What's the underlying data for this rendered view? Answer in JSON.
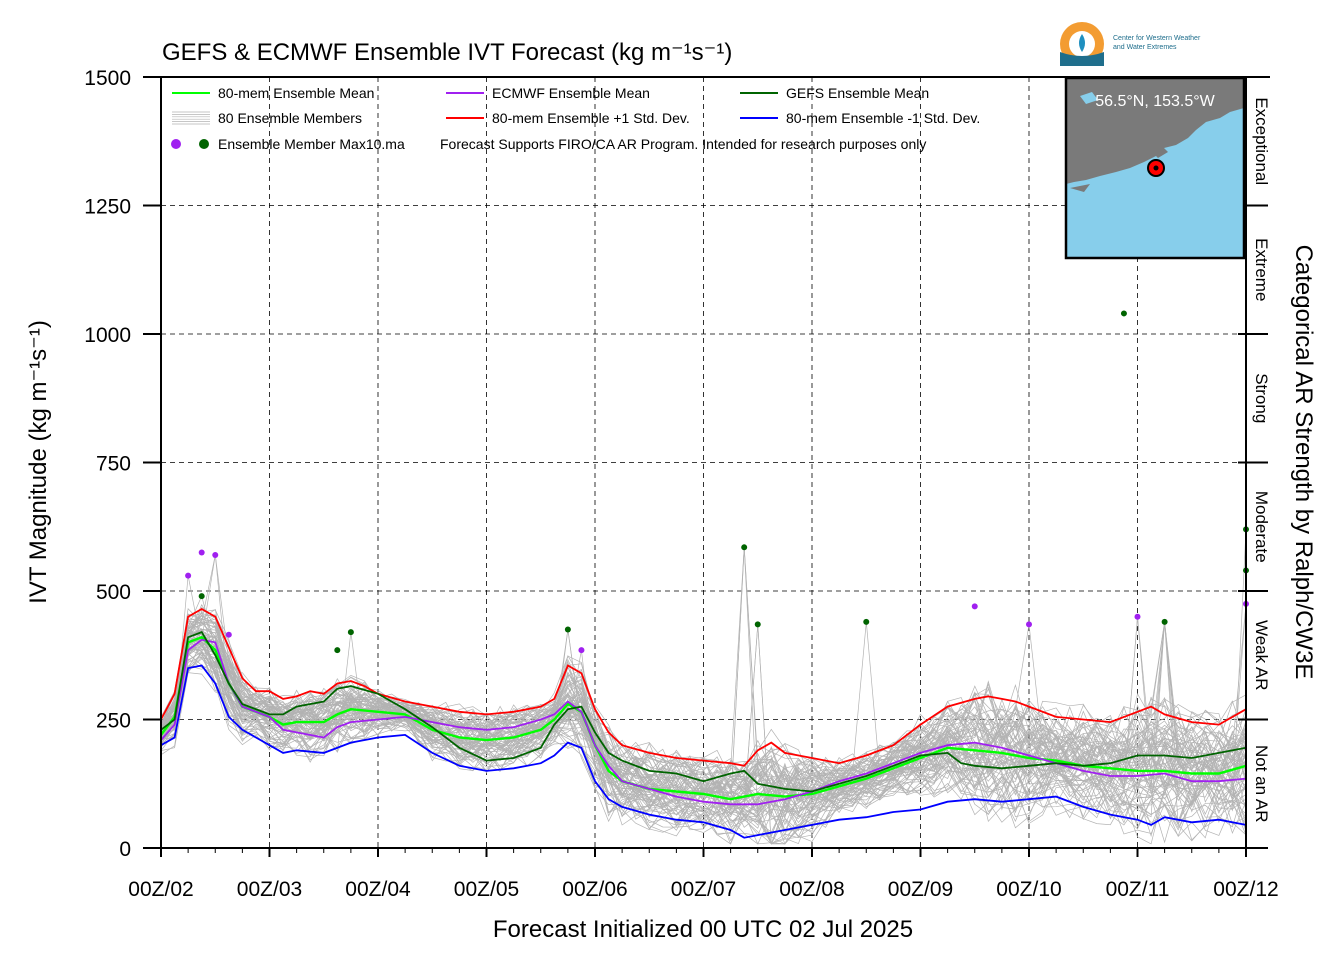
{
  "title": "GEFS & ECMWF Ensemble IVT Forecast (kg m⁻¹s⁻¹)",
  "xlabel": "Forecast Initialized 00 UTC 02 Jul 2025",
  "ylabel": "IVT Magnitude (kg m⁻¹s⁻¹)",
  "right_axis_label": "Categorical AR Strength by Ralph/CW3E",
  "logo_text": [
    "Center for Western Weather",
    "and Water Extremes"
  ],
  "inset": {
    "location_label": "56.5°N, 153.5°W",
    "colors": {
      "land": "#7a7a7a",
      "ocean": "#87ceeb",
      "marker": "#ff0000"
    }
  },
  "legend": {
    "placement": "top-left",
    "entries": [
      {
        "label": "80-mem Ensemble Mean",
        "color": "#00ff00",
        "style": "line"
      },
      {
        "label": "ECMWF Ensemble Mean",
        "color": "#a020f0",
        "style": "line"
      },
      {
        "label": "GEFS Ensemble Mean",
        "color": "#006400",
        "style": "line"
      },
      {
        "label": "80 Ensemble Members",
        "color": "#b3b3b3",
        "style": "thin-lines"
      },
      {
        "label": "80-mem Ensemble +1 Std. Dev.",
        "color": "#ff0000",
        "style": "line"
      },
      {
        "label": "80-mem Ensemble -1 Std. Dev.",
        "color": "#0000ff",
        "style": "line"
      },
      {
        "label": "Ensemble Member Max10.ma",
        "colors": [
          "#a020f0",
          "#006400"
        ],
        "style": "dots"
      }
    ],
    "note": "Forecast Supports FIRO/CA AR Program. Intended for research purposes only"
  },
  "chart_data": {
    "type": "line",
    "title": "GEFS & ECMWF Ensemble IVT Forecast (kg m⁻¹s⁻¹)",
    "xlabel": "Forecast Initialized 00 UTC 02 Jul 2025",
    "ylabel": "IVT Magnitude (kg m⁻¹s⁻¹)",
    "x_unit": "days since 00Z/02",
    "xlim": [
      0,
      10
    ],
    "ylim": [
      0,
      1500
    ],
    "x_ticks": [
      0,
      1,
      2,
      3,
      4,
      5,
      6,
      7,
      8,
      9,
      10
    ],
    "x_tick_labels": [
      "00Z/02",
      "00Z/03",
      "00Z/04",
      "00Z/05",
      "00Z/06",
      "00Z/07",
      "00Z/08",
      "00Z/09",
      "00Z/10",
      "00Z/11",
      "00Z/12"
    ],
    "y_ticks": [
      0,
      250,
      500,
      750,
      1000,
      1250,
      1500
    ],
    "y_tick_labels": [
      "0",
      "250",
      "500",
      "750",
      "1000",
      "1250",
      "1500"
    ],
    "grid": true,
    "categories_right": [
      {
        "label": "Not an AR",
        "range": [
          0,
          250
        ]
      },
      {
        "label": "Weak AR",
        "range": [
          250,
          500
        ]
      },
      {
        "label": "Moderate",
        "range": [
          500,
          750
        ]
      },
      {
        "label": "Strong",
        "range": [
          750,
          1000
        ]
      },
      {
        "label": "Extreme",
        "range": [
          1000,
          1250
        ]
      },
      {
        "label": "Exceptional",
        "range": [
          1250,
          1500
        ]
      }
    ],
    "series": [
      {
        "name": "80-mem Ensemble +1 Std. Dev.",
        "color": "#ff0000",
        "points": [
          [
            0,
            250
          ],
          [
            0.125,
            300
          ],
          [
            0.25,
            450
          ],
          [
            0.375,
            465
          ],
          [
            0.5,
            450
          ],
          [
            0.625,
            390
          ],
          [
            0.75,
            330
          ],
          [
            0.875,
            305
          ],
          [
            1,
            305
          ],
          [
            1.125,
            290
          ],
          [
            1.25,
            295
          ],
          [
            1.375,
            305
          ],
          [
            1.5,
            300
          ],
          [
            1.625,
            320
          ],
          [
            1.75,
            325
          ],
          [
            1.875,
            315
          ],
          [
            2,
            300
          ],
          [
            2.25,
            285
          ],
          [
            2.5,
            275
          ],
          [
            2.75,
            265
          ],
          [
            3,
            260
          ],
          [
            3.25,
            265
          ],
          [
            3.5,
            275
          ],
          [
            3.625,
            290
          ],
          [
            3.75,
            355
          ],
          [
            3.875,
            340
          ],
          [
            4,
            270
          ],
          [
            4.125,
            225
          ],
          [
            4.25,
            200
          ],
          [
            4.5,
            185
          ],
          [
            4.75,
            175
          ],
          [
            5,
            170
          ],
          [
            5.25,
            165
          ],
          [
            5.375,
            160
          ],
          [
            5.5,
            190
          ],
          [
            5.625,
            205
          ],
          [
            5.75,
            185
          ],
          [
            6,
            175
          ],
          [
            6.25,
            165
          ],
          [
            6.5,
            180
          ],
          [
            6.75,
            200
          ],
          [
            7,
            240
          ],
          [
            7.25,
            275
          ],
          [
            7.5,
            290
          ],
          [
            7.625,
            295
          ],
          [
            7.75,
            290
          ],
          [
            7.875,
            285
          ],
          [
            8,
            275
          ],
          [
            8.25,
            255
          ],
          [
            8.5,
            250
          ],
          [
            8.75,
            245
          ],
          [
            9,
            265
          ],
          [
            9.125,
            275
          ],
          [
            9.25,
            260
          ],
          [
            9.5,
            245
          ],
          [
            9.75,
            240
          ],
          [
            10,
            270
          ]
        ]
      },
      {
        "name": "80-mem Ensemble -1 Std. Dev.",
        "color": "#0000ff",
        "points": [
          [
            0,
            200
          ],
          [
            0.125,
            215
          ],
          [
            0.25,
            350
          ],
          [
            0.375,
            355
          ],
          [
            0.5,
            320
          ],
          [
            0.625,
            255
          ],
          [
            0.75,
            230
          ],
          [
            1,
            200
          ],
          [
            1.125,
            185
          ],
          [
            1.25,
            190
          ],
          [
            1.5,
            185
          ],
          [
            1.75,
            205
          ],
          [
            2,
            215
          ],
          [
            2.25,
            220
          ],
          [
            2.5,
            185
          ],
          [
            2.75,
            160
          ],
          [
            3,
            150
          ],
          [
            3.25,
            155
          ],
          [
            3.5,
            165
          ],
          [
            3.625,
            180
          ],
          [
            3.75,
            205
          ],
          [
            3.875,
            195
          ],
          [
            4,
            130
          ],
          [
            4.125,
            95
          ],
          [
            4.25,
            80
          ],
          [
            4.5,
            65
          ],
          [
            4.75,
            55
          ],
          [
            5,
            50
          ],
          [
            5.25,
            35
          ],
          [
            5.375,
            20
          ],
          [
            5.5,
            25
          ],
          [
            5.75,
            35
          ],
          [
            6,
            45
          ],
          [
            6.25,
            55
          ],
          [
            6.5,
            60
          ],
          [
            6.75,
            70
          ],
          [
            7,
            75
          ],
          [
            7.25,
            90
          ],
          [
            7.5,
            95
          ],
          [
            7.75,
            90
          ],
          [
            8,
            95
          ],
          [
            8.25,
            100
          ],
          [
            8.5,
            80
          ],
          [
            8.75,
            65
          ],
          [
            9,
            55
          ],
          [
            9.125,
            45
          ],
          [
            9.25,
            60
          ],
          [
            9.5,
            50
          ],
          [
            9.75,
            55
          ],
          [
            10,
            45
          ]
        ]
      },
      {
        "name": "80-mem Ensemble Mean",
        "color": "#00ff00",
        "points": [
          [
            0,
            220
          ],
          [
            0.125,
            255
          ],
          [
            0.25,
            400
          ],
          [
            0.375,
            410
          ],
          [
            0.5,
            385
          ],
          [
            0.625,
            320
          ],
          [
            0.75,
            275
          ],
          [
            1,
            255
          ],
          [
            1.125,
            240
          ],
          [
            1.25,
            245
          ],
          [
            1.5,
            245
          ],
          [
            1.625,
            260
          ],
          [
            1.75,
            270
          ],
          [
            2,
            265
          ],
          [
            2.25,
            260
          ],
          [
            2.5,
            230
          ],
          [
            2.75,
            215
          ],
          [
            3,
            210
          ],
          [
            3.25,
            215
          ],
          [
            3.5,
            230
          ],
          [
            3.625,
            250
          ],
          [
            3.75,
            280
          ],
          [
            3.875,
            265
          ],
          [
            4,
            200
          ],
          [
            4.125,
            150
          ],
          [
            4.25,
            130
          ],
          [
            4.5,
            115
          ],
          [
            4.75,
            110
          ],
          [
            5,
            105
          ],
          [
            5.25,
            95
          ],
          [
            5.375,
            100
          ],
          [
            5.5,
            105
          ],
          [
            5.75,
            100
          ],
          [
            6,
            105
          ],
          [
            6.25,
            120
          ],
          [
            6.5,
            135
          ],
          [
            6.75,
            155
          ],
          [
            7,
            175
          ],
          [
            7.25,
            195
          ],
          [
            7.5,
            190
          ],
          [
            7.75,
            185
          ],
          [
            8,
            175
          ],
          [
            8.25,
            170
          ],
          [
            8.5,
            160
          ],
          [
            8.75,
            155
          ],
          [
            9,
            150
          ],
          [
            9.25,
            150
          ],
          [
            9.5,
            145
          ],
          [
            9.75,
            145
          ],
          [
            10,
            160
          ]
        ]
      },
      {
        "name": "ECMWF Ensemble Mean",
        "color": "#a020f0",
        "points": [
          [
            0,
            210
          ],
          [
            0.125,
            240
          ],
          [
            0.25,
            385
          ],
          [
            0.375,
            405
          ],
          [
            0.5,
            400
          ],
          [
            0.625,
            320
          ],
          [
            0.75,
            275
          ],
          [
            1,
            255
          ],
          [
            1.125,
            230
          ],
          [
            1.25,
            225
          ],
          [
            1.5,
            215
          ],
          [
            1.625,
            235
          ],
          [
            1.75,
            245
          ],
          [
            2,
            250
          ],
          [
            2.25,
            255
          ],
          [
            2.5,
            245
          ],
          [
            2.75,
            235
          ],
          [
            3,
            230
          ],
          [
            3.25,
            235
          ],
          [
            3.5,
            250
          ],
          [
            3.625,
            260
          ],
          [
            3.75,
            285
          ],
          [
            3.875,
            265
          ],
          [
            4,
            200
          ],
          [
            4.125,
            160
          ],
          [
            4.25,
            130
          ],
          [
            4.5,
            115
          ],
          [
            4.75,
            100
          ],
          [
            5,
            90
          ],
          [
            5.25,
            85
          ],
          [
            5.5,
            85
          ],
          [
            5.75,
            95
          ],
          [
            6,
            110
          ],
          [
            6.25,
            130
          ],
          [
            6.5,
            145
          ],
          [
            6.75,
            165
          ],
          [
            7,
            185
          ],
          [
            7.25,
            200
          ],
          [
            7.5,
            205
          ],
          [
            7.75,
            195
          ],
          [
            8,
            180
          ],
          [
            8.25,
            165
          ],
          [
            8.5,
            150
          ],
          [
            8.75,
            140
          ],
          [
            9,
            140
          ],
          [
            9.25,
            145
          ],
          [
            9.5,
            130
          ],
          [
            9.75,
            130
          ],
          [
            10,
            135
          ]
        ]
      },
      {
        "name": "GEFS Ensemble Mean",
        "color": "#006400",
        "points": [
          [
            0,
            230
          ],
          [
            0.125,
            250
          ],
          [
            0.25,
            410
          ],
          [
            0.375,
            420
          ],
          [
            0.5,
            375
          ],
          [
            0.625,
            320
          ],
          [
            0.75,
            280
          ],
          [
            1,
            260
          ],
          [
            1.125,
            260
          ],
          [
            1.25,
            275
          ],
          [
            1.5,
            285
          ],
          [
            1.625,
            310
          ],
          [
            1.75,
            315
          ],
          [
            2,
            300
          ],
          [
            2.25,
            270
          ],
          [
            2.5,
            235
          ],
          [
            2.75,
            195
          ],
          [
            3,
            170
          ],
          [
            3.25,
            175
          ],
          [
            3.5,
            195
          ],
          [
            3.625,
            240
          ],
          [
            3.75,
            270
          ],
          [
            3.875,
            275
          ],
          [
            4,
            225
          ],
          [
            4.125,
            185
          ],
          [
            4.25,
            170
          ],
          [
            4.5,
            150
          ],
          [
            4.75,
            145
          ],
          [
            5,
            130
          ],
          [
            5.25,
            145
          ],
          [
            5.375,
            150
          ],
          [
            5.5,
            125
          ],
          [
            5.75,
            115
          ],
          [
            6,
            110
          ],
          [
            6.25,
            125
          ],
          [
            6.5,
            140
          ],
          [
            6.75,
            160
          ],
          [
            7,
            180
          ],
          [
            7.25,
            185
          ],
          [
            7.375,
            165
          ],
          [
            7.5,
            160
          ],
          [
            7.75,
            155
          ],
          [
            8,
            160
          ],
          [
            8.25,
            165
          ],
          [
            8.5,
            160
          ],
          [
            8.75,
            165
          ],
          [
            9,
            180
          ],
          [
            9.25,
            180
          ],
          [
            9.5,
            175
          ],
          [
            9.75,
            185
          ],
          [
            10,
            195
          ]
        ]
      }
    ],
    "member_max_points": {
      "ECMWF": {
        "color": "#a020f0",
        "points": [
          [
            0.25,
            530
          ],
          [
            0.375,
            575
          ],
          [
            0.5,
            570
          ],
          [
            0.625,
            415
          ],
          [
            3.875,
            385
          ],
          [
            7.5,
            470
          ],
          [
            8,
            435
          ],
          [
            9,
            450
          ],
          [
            10,
            475
          ]
        ]
      },
      "GEFS": {
        "color": "#006400",
        "points": [
          [
            0.375,
            490
          ],
          [
            1.625,
            385
          ],
          [
            1.75,
            420
          ],
          [
            3.75,
            425
          ],
          [
            5.375,
            585
          ],
          [
            5.5,
            435
          ],
          [
            6.5,
            440
          ],
          [
            8.875,
            1040
          ],
          [
            9.25,
            440
          ],
          [
            10,
            620
          ],
          [
            10,
            540
          ]
        ]
      }
    }
  }
}
